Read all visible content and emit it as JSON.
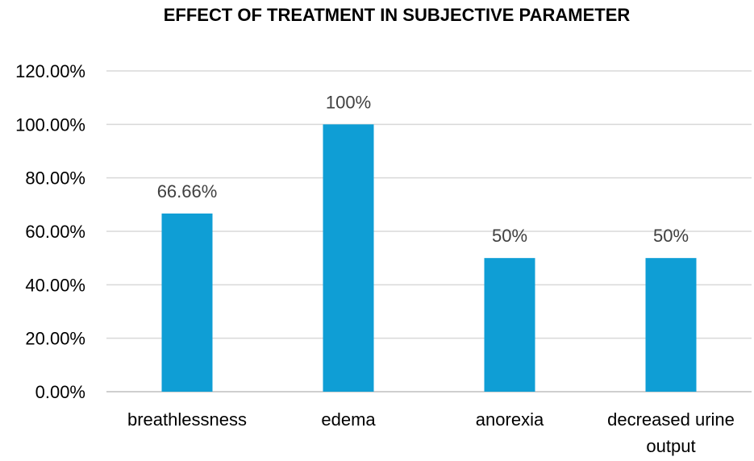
{
  "chart_data": {
    "type": "bar",
    "title": "EFFECT OF TREATMENT IN SUBJECTIVE PARAMETER",
    "categories": [
      [
        "breathlessness"
      ],
      [
        "edema"
      ],
      [
        "anorexia"
      ],
      [
        "decreased urine",
        "output"
      ]
    ],
    "values": [
      66.66,
      100,
      50,
      50
    ],
    "data_labels": [
      "66.66%",
      "100%",
      "50%",
      "50%"
    ],
    "y_ticks": [
      "0.00%",
      "20.00%",
      "40.00%",
      "60.00%",
      "80.00%",
      "100.00%",
      "120.00%"
    ],
    "ylim": [
      0,
      120
    ],
    "bar_color": "#0f9ed5",
    "grid": true,
    "legend": "none"
  }
}
